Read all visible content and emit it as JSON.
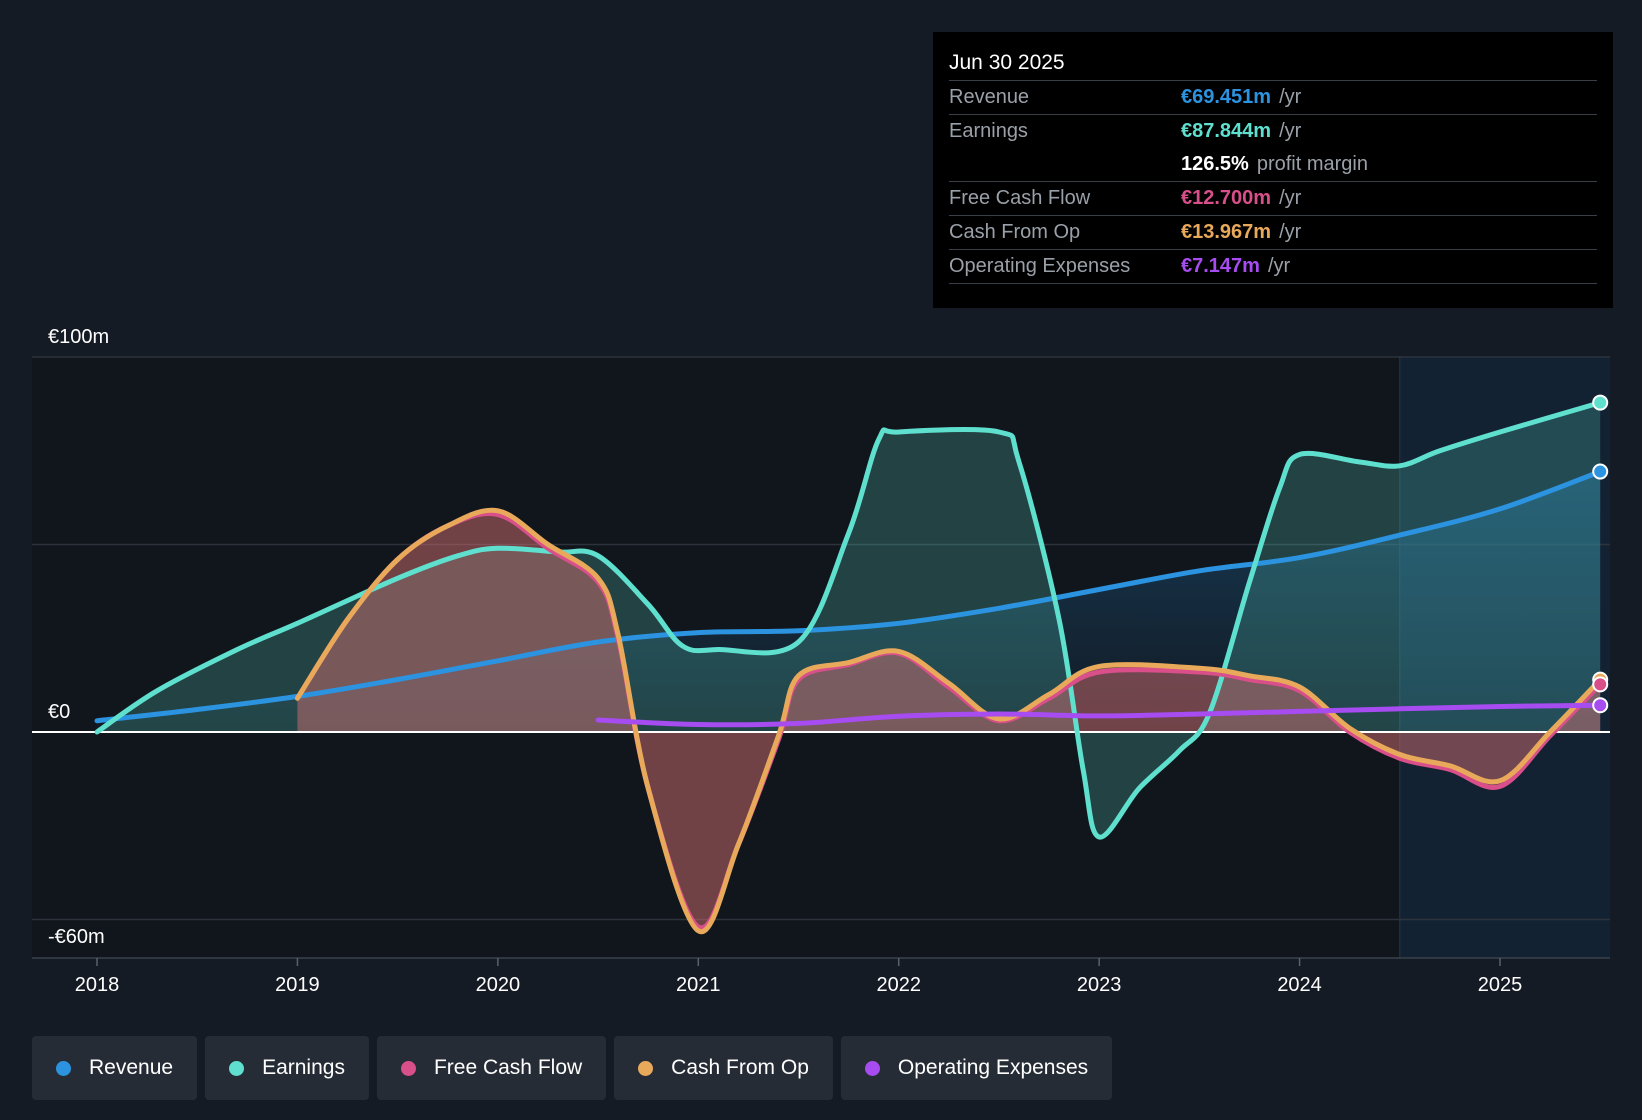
{
  "tooltip": {
    "date": "Jun 30 2025",
    "revenue": {
      "label": "Revenue",
      "value": "€69.451m",
      "unit": "/yr"
    },
    "earnings": {
      "label": "Earnings",
      "value": "€87.844m",
      "unit": "/yr"
    },
    "margin": {
      "value": "126.5%",
      "text": "profit margin"
    },
    "fcf": {
      "label": "Free Cash Flow",
      "value": "€12.700m",
      "unit": "/yr"
    },
    "cfo": {
      "label": "Cash From Op",
      "value": "€13.967m",
      "unit": "/yr"
    },
    "opex": {
      "label": "Operating Expenses",
      "value": "€7.147m",
      "unit": "/yr"
    }
  },
  "legend": {
    "revenue": "Revenue",
    "earnings": "Earnings",
    "fcf": "Free Cash Flow",
    "cfo": "Cash From Op",
    "opex": "Operating Expenses"
  },
  "colors": {
    "revenue": "#2b93e0",
    "earnings": "#5fe0cf",
    "fcf": "#d84f8a",
    "cfo": "#e8a95a",
    "opex": "#a64cf0",
    "background": "#151b24"
  },
  "chart_data": {
    "type": "area",
    "title": "",
    "xlabel": "",
    "ylabel": "",
    "x_ticks": [
      "2018",
      "2019",
      "2020",
      "2021",
      "2022",
      "2023",
      "2024",
      "2025"
    ],
    "y_ticks": [
      {
        "value": 100,
        "label": "€100m"
      },
      {
        "value": 0,
        "label": "€0"
      },
      {
        "value": -60,
        "label": "-€60m"
      }
    ],
    "ylim": [
      -60,
      100
    ],
    "xlim": [
      2017.67,
      2025.5
    ],
    "forecast_start": 2024.5,
    "series": [
      {
        "key": "revenue",
        "name": "Revenue",
        "points": [
          [
            2018,
            3
          ],
          [
            2018.5,
            6
          ],
          [
            2019,
            9.5
          ],
          [
            2019.5,
            14
          ],
          [
            2020,
            19
          ],
          [
            2020.5,
            24
          ],
          [
            2021,
            26.5
          ],
          [
            2021.5,
            27
          ],
          [
            2022,
            29
          ],
          [
            2022.5,
            33
          ],
          [
            2023,
            38
          ],
          [
            2023.5,
            43
          ],
          [
            2024,
            46.5
          ],
          [
            2024.5,
            52.5
          ],
          [
            2025,
            59.5
          ],
          [
            2025.5,
            69.451
          ]
        ]
      },
      {
        "key": "earnings",
        "name": "Earnings",
        "points": [
          [
            2018,
            0
          ],
          [
            2018.3,
            11
          ],
          [
            2018.7,
            22
          ],
          [
            2019,
            29
          ],
          [
            2019.5,
            41
          ],
          [
            2019.8,
            47
          ],
          [
            2020,
            49
          ],
          [
            2020.3,
            48
          ],
          [
            2020.5,
            47
          ],
          [
            2020.75,
            34
          ],
          [
            2020.92,
            23
          ],
          [
            2021.1,
            22
          ],
          [
            2021.5,
            24
          ],
          [
            2021.75,
            53
          ],
          [
            2021.9,
            78
          ],
          [
            2022.0,
            80
          ],
          [
            2022.5,
            80
          ],
          [
            2022.6,
            72
          ],
          [
            2022.8,
            30
          ],
          [
            2022.92,
            -10
          ],
          [
            2023.0,
            -28
          ],
          [
            2023.2,
            -15
          ],
          [
            2023.4,
            -5
          ],
          [
            2023.55,
            5
          ],
          [
            2023.75,
            40
          ],
          [
            2023.9,
            65
          ],
          [
            2024.0,
            74
          ],
          [
            2024.3,
            72
          ],
          [
            2024.5,
            71
          ],
          [
            2024.7,
            75
          ],
          [
            2025.0,
            80
          ],
          [
            2025.5,
            87.844
          ]
        ]
      },
      {
        "key": "fcf",
        "name": "Free Cash Flow",
        "points": [
          [
            2019,
            9
          ],
          [
            2019.25,
            30
          ],
          [
            2019.5,
            46
          ],
          [
            2019.75,
            55
          ],
          [
            2020.0,
            58
          ],
          [
            2020.25,
            49
          ],
          [
            2020.5,
            40
          ],
          [
            2020.6,
            25
          ],
          [
            2020.75,
            -15
          ],
          [
            2021.0,
            -52
          ],
          [
            2021.2,
            -30
          ],
          [
            2021.4,
            -2
          ],
          [
            2021.5,
            14
          ],
          [
            2021.75,
            18
          ],
          [
            2022.0,
            21
          ],
          [
            2022.25,
            12
          ],
          [
            2022.5,
            3
          ],
          [
            2022.75,
            9
          ],
          [
            2023.0,
            16
          ],
          [
            2023.5,
            16
          ],
          [
            2023.75,
            14
          ],
          [
            2024.0,
            11
          ],
          [
            2024.25,
            0
          ],
          [
            2024.5,
            -7
          ],
          [
            2024.75,
            -10
          ],
          [
            2025.0,
            -14.5
          ],
          [
            2025.25,
            -1
          ],
          [
            2025.5,
            12.7
          ]
        ]
      },
      {
        "key": "cfo",
        "name": "Cash From Op",
        "points": [
          [
            2019,
            9
          ],
          [
            2019.25,
            30
          ],
          [
            2019.5,
            46
          ],
          [
            2019.75,
            55
          ],
          [
            2020.0,
            59
          ],
          [
            2020.25,
            50
          ],
          [
            2020.5,
            41
          ],
          [
            2020.6,
            26
          ],
          [
            2020.75,
            -15
          ],
          [
            2021.0,
            -53
          ],
          [
            2021.2,
            -30
          ],
          [
            2021.4,
            -1
          ],
          [
            2021.5,
            15
          ],
          [
            2021.75,
            18.5
          ],
          [
            2022.0,
            21.5
          ],
          [
            2022.25,
            13
          ],
          [
            2022.5,
            3.5
          ],
          [
            2022.75,
            10
          ],
          [
            2023.0,
            17.5
          ],
          [
            2023.5,
            17
          ],
          [
            2023.75,
            15
          ],
          [
            2024.0,
            12
          ],
          [
            2024.25,
            1
          ],
          [
            2024.5,
            -6
          ],
          [
            2024.75,
            -9
          ],
          [
            2025.0,
            -13
          ],
          [
            2025.25,
            0
          ],
          [
            2025.5,
            13.967
          ]
        ]
      },
      {
        "key": "opex",
        "name": "Operating Expenses",
        "points": [
          [
            2020.5,
            3.2
          ],
          [
            2021,
            2
          ],
          [
            2021.5,
            2.3
          ],
          [
            2022,
            4.2
          ],
          [
            2022.5,
            4.8
          ],
          [
            2023,
            4.3
          ],
          [
            2023.5,
            4.8
          ],
          [
            2024,
            5.5
          ],
          [
            2024.5,
            6.2
          ],
          [
            2025,
            6.8
          ],
          [
            2025.5,
            7.147
          ]
        ]
      }
    ]
  }
}
